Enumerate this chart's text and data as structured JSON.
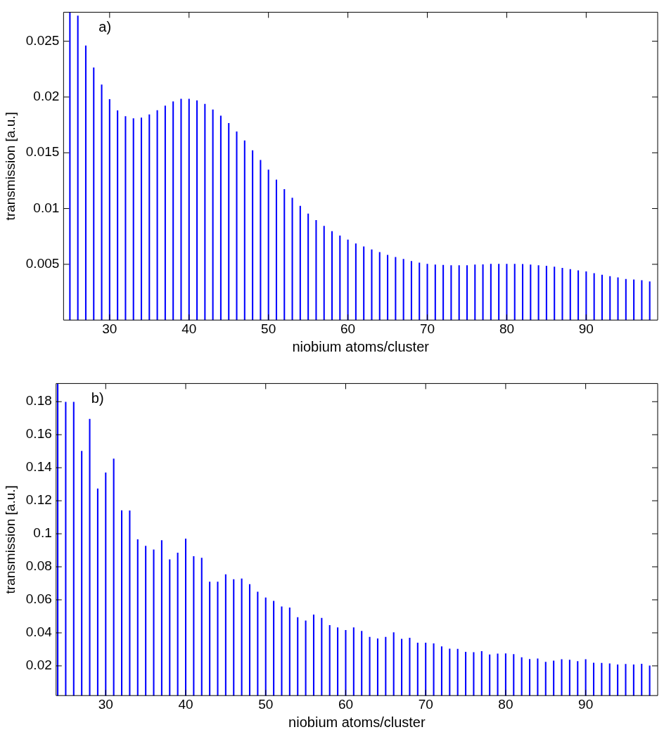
{
  "chart_data": [
    {
      "type": "bar",
      "xlabel": "niobium atoms/cluster",
      "ylabel": "transmission [a.u.]",
      "annotations": [
        "a)"
      ],
      "color": "#0000ff",
      "grid": false,
      "legend": false,
      "x": [
        25,
        26,
        27,
        28,
        29,
        30,
        31,
        32,
        33,
        34,
        35,
        36,
        37,
        38,
        39,
        40,
        41,
        42,
        43,
        44,
        45,
        46,
        47,
        48,
        49,
        50,
        51,
        52,
        53,
        54,
        55,
        56,
        57,
        58,
        59,
        60,
        61,
        62,
        63,
        64,
        65,
        66,
        67,
        68,
        69,
        70,
        71,
        72,
        73,
        74,
        75,
        76,
        77,
        78,
        79,
        80,
        81,
        82,
        83,
        84,
        85,
        86,
        87,
        88,
        89,
        90,
        91,
        92,
        93,
        94,
        95,
        96,
        97,
        98
      ],
      "values": [
        0.0276,
        0.02728,
        0.0246,
        0.02262,
        0.02109,
        0.01978,
        0.01878,
        0.01826,
        0.01807,
        0.01814,
        0.01841,
        0.0188,
        0.0192,
        0.01959,
        0.01982,
        0.01982,
        0.01967,
        0.01936,
        0.01886,
        0.0183,
        0.01764,
        0.01689,
        0.01608,
        0.0152,
        0.01433,
        0.01346,
        0.01257,
        0.01171,
        0.01095,
        0.01022,
        0.00953,
        0.00895,
        0.00843,
        0.00795,
        0.00755,
        0.0072,
        0.00685,
        0.00658,
        0.00631,
        0.00608,
        0.00583,
        0.00564,
        0.00546,
        0.00527,
        0.00513,
        0.00502,
        0.00496,
        0.00492,
        0.0049,
        0.0049,
        0.0049,
        0.00496,
        0.00498,
        0.00502,
        0.00502,
        0.00502,
        0.00502,
        0.005,
        0.00496,
        0.0049,
        0.00484,
        0.00477,
        0.00465,
        0.00455,
        0.00444,
        0.00434,
        0.00419,
        0.00405,
        0.00392,
        0.0038,
        0.00367,
        0.00361,
        0.00355,
        0.00345
      ],
      "xlim": [
        24.2,
        99
      ],
      "xticks": [
        30,
        40,
        50,
        60,
        70,
        80,
        90
      ],
      "ylim": [
        0,
        0.0276
      ],
      "yticks": [
        0.005,
        0.01,
        0.015,
        0.02,
        0.025
      ]
    },
    {
      "type": "bar",
      "xlabel": "niobium atoms/cluster",
      "ylabel": "transmission [a.u.]",
      "annotations": [
        "b)"
      ],
      "color": "#0000ff",
      "grid": false,
      "legend": false,
      "x": [
        24,
        25,
        26,
        27,
        28,
        29,
        30,
        31,
        32,
        33,
        34,
        35,
        36,
        37,
        38,
        39,
        40,
        41,
        42,
        43,
        44,
        45,
        46,
        47,
        48,
        49,
        50,
        51,
        52,
        53,
        54,
        55,
        56,
        57,
        58,
        59,
        60,
        61,
        62,
        63,
        64,
        65,
        66,
        67,
        68,
        69,
        70,
        71,
        72,
        73,
        74,
        75,
        76,
        77,
        78,
        79,
        80,
        81,
        82,
        83,
        84,
        85,
        86,
        87,
        88,
        89,
        90,
        91,
        92,
        93,
        94,
        95,
        96,
        97,
        98
      ],
      "values": [
        0.191,
        0.1797,
        0.1797,
        0.15,
        0.1694,
        0.1273,
        0.1369,
        0.1454,
        0.1141,
        0.1139,
        0.0965,
        0.0926,
        0.0903,
        0.096,
        0.0844,
        0.0884,
        0.0969,
        0.0863,
        0.0853,
        0.0708,
        0.0708,
        0.0753,
        0.0723,
        0.0727,
        0.0693,
        0.0648,
        0.0612,
        0.0592,
        0.0558,
        0.0552,
        0.0493,
        0.0473,
        0.0509,
        0.0489,
        0.0445,
        0.0431,
        0.0416,
        0.0432,
        0.041,
        0.0374,
        0.0364,
        0.0374,
        0.0402,
        0.0362,
        0.0369,
        0.0339,
        0.0339,
        0.0335,
        0.0317,
        0.0303,
        0.0302,
        0.0284,
        0.0281,
        0.0288,
        0.0268,
        0.0273,
        0.0274,
        0.027,
        0.025,
        0.024,
        0.0243,
        0.0223,
        0.023,
        0.0239,
        0.0236,
        0.0227,
        0.0239,
        0.0218,
        0.0216,
        0.0213,
        0.0207,
        0.021,
        0.0207,
        0.0211,
        0.02
      ],
      "xlim": [
        23.8,
        99
      ],
      "xticks": [
        30,
        40,
        50,
        60,
        70,
        80,
        90
      ],
      "ylim": [
        0.002,
        0.191
      ],
      "yticks": [
        0.02,
        0.04,
        0.06,
        0.08,
        0.1,
        0.12,
        0.14,
        0.16,
        0.18
      ]
    }
  ]
}
